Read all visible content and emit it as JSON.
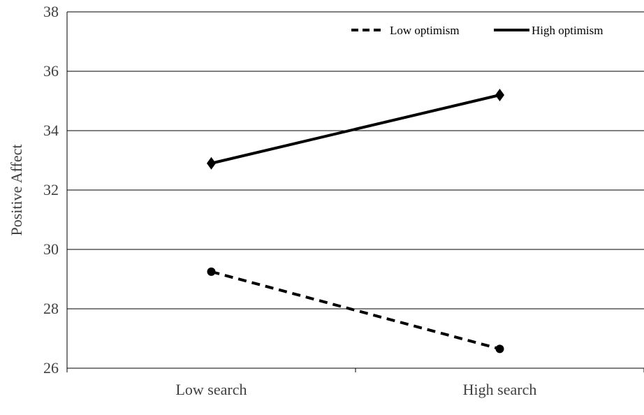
{
  "chart_data": {
    "type": "line",
    "categories": [
      "Low search",
      "High search"
    ],
    "ylabel": "Positive Affect",
    "xlabel": "",
    "ylim": [
      26,
      38
    ],
    "yticks": [
      26,
      28,
      30,
      32,
      34,
      36,
      38
    ],
    "grid": true,
    "legend_position": "top-right",
    "series": [
      {
        "name": "Low optimism",
        "values": [
          29.25,
          26.65
        ],
        "line_style": "dashed",
        "marker": "circle",
        "color": "#000000"
      },
      {
        "name": "High optimism",
        "values": [
          32.9,
          35.2
        ],
        "line_style": "solid",
        "marker": "diamond",
        "color": "#000000"
      }
    ],
    "colors": {
      "grid": "#000000",
      "axis_text": "#404040",
      "line": "#000000"
    }
  }
}
